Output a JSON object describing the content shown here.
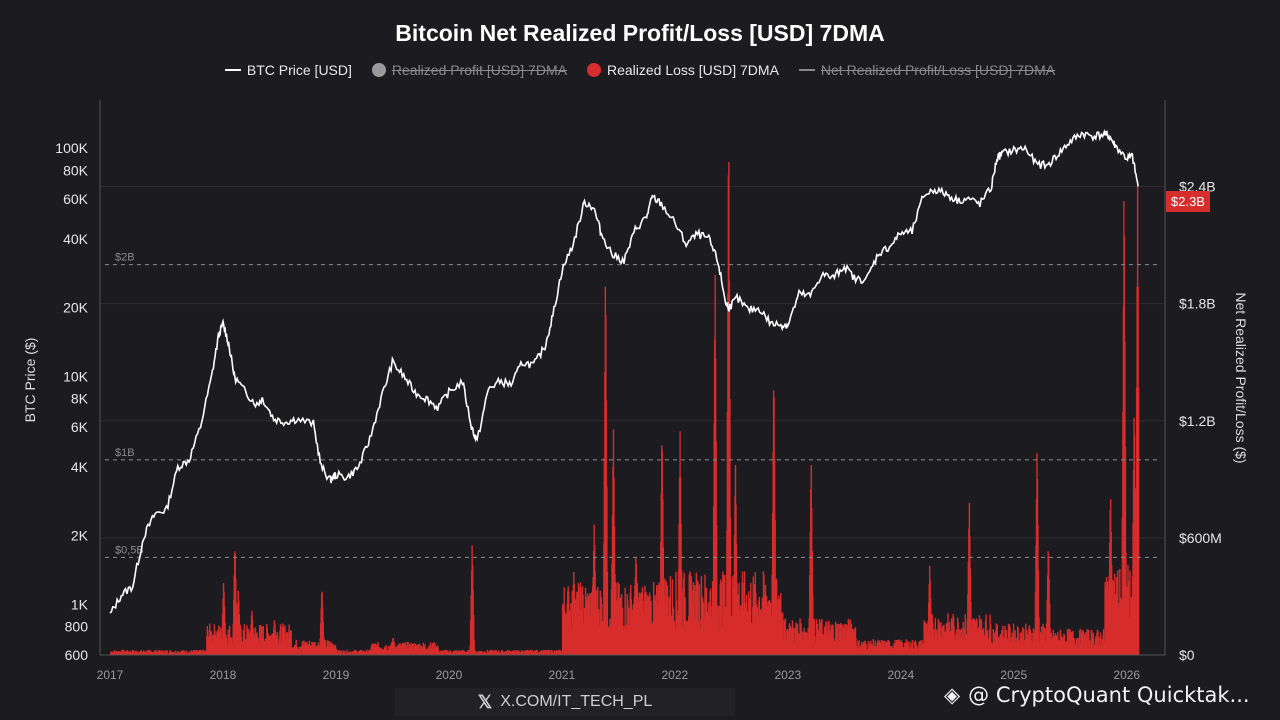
{
  "chart_data": {
    "type": "area",
    "title": "Bitcoin Net Realized Profit/Loss [USD] 7DMA",
    "legend": [
      {
        "name": "BTC Price [USD]",
        "marker": "line",
        "color": "#ffffff",
        "active": true
      },
      {
        "name": "Realized Profit [USD] 7DMA",
        "marker": "dot",
        "color": "#9a9a9a",
        "active": false
      },
      {
        "name": "Realized Loss [USD] 7DMA",
        "marker": "dot",
        "color": "#d62d2d",
        "active": true
      },
      {
        "name": "Net Realized Profit/Loss [USD] 7DMA",
        "marker": "line",
        "color": "#8a8a8a",
        "active": false
      }
    ],
    "legend_position": "top-center",
    "ylabel_left": "BTC Price ($)",
    "ylabel_right": "Net Realized Profit/Loss ($)",
    "x_range": [
      2017.0,
      2026.25
    ],
    "x_ticks": [
      "2017",
      "2018",
      "2019",
      "2020",
      "2021",
      "2022",
      "2023",
      "2024",
      "2025",
      "2026"
    ],
    "y_left_scale": "log",
    "y_left_range": [
      600,
      150000
    ],
    "y_left_ticks": [
      {
        "label": "600",
        "value": 600
      },
      {
        "label": "800",
        "value": 800
      },
      {
        "label": "1K",
        "value": 1000
      },
      {
        "label": "2K",
        "value": 2000
      },
      {
        "label": "4K",
        "value": 4000
      },
      {
        "label": "6K",
        "value": 6000
      },
      {
        "label": "8K",
        "value": 8000
      },
      {
        "label": "10K",
        "value": 10000
      },
      {
        "label": "20K",
        "value": 20000
      },
      {
        "label": "40K",
        "value": 40000
      },
      {
        "label": "60K",
        "value": 60000
      },
      {
        "label": "80K",
        "value": 80000
      },
      {
        "label": "100K",
        "value": 100000
      }
    ],
    "y_right_range": [
      0,
      2.7
    ],
    "y_right_ticks": [
      {
        "label": "$0",
        "value": 0
      },
      {
        "label": "$600M",
        "value": 0.6
      },
      {
        "label": "$1.2B",
        "value": 1.2
      },
      {
        "label": "$1.8B",
        "value": 1.8
      },
      {
        "label": "$2.4B",
        "value": 2.4
      }
    ],
    "reference_lines": [
      {
        "label": "$0,5B",
        "value": 0.5
      },
      {
        "label": "$1B",
        "value": 1.0
      },
      {
        "label": "$2B",
        "value": 2.0
      }
    ],
    "current_value_label": "$2.3B",
    "btc_price": {
      "name": "BTC Price [USD]",
      "x": [
        2017.0,
        2017.1,
        2017.2,
        2017.3,
        2017.4,
        2017.5,
        2017.6,
        2017.7,
        2017.8,
        2017.9,
        2017.96,
        2018.0,
        2018.05,
        2018.1,
        2018.2,
        2018.3,
        2018.35,
        2018.45,
        2018.55,
        2018.65,
        2018.8,
        2018.87,
        2018.95,
        2019.0,
        2019.1,
        2019.2,
        2019.3,
        2019.4,
        2019.5,
        2019.6,
        2019.7,
        2019.8,
        2019.9,
        2020.0,
        2020.12,
        2020.2,
        2020.25,
        2020.35,
        2020.45,
        2020.55,
        2020.65,
        2020.75,
        2020.85,
        2020.92,
        2021.0,
        2021.1,
        2021.2,
        2021.28,
        2021.35,
        2021.45,
        2021.55,
        2021.65,
        2021.75,
        2021.8,
        2021.88,
        2022.0,
        2022.1,
        2022.2,
        2022.3,
        2022.38,
        2022.45,
        2022.48,
        2022.55,
        2022.65,
        2022.75,
        2022.85,
        2022.95,
        2023.0,
        2023.1,
        2023.2,
        2023.3,
        2023.4,
        2023.5,
        2023.6,
        2023.7,
        2023.8,
        2023.9,
        2024.0,
        2024.1,
        2024.2,
        2024.3,
        2024.4,
        2024.5,
        2024.6,
        2024.7,
        2024.8,
        2024.85,
        2024.9,
        2025.0,
        2025.1,
        2025.2,
        2025.3,
        2025.4,
        2025.5,
        2025.6,
        2025.7,
        2025.8,
        2025.85,
        2025.9,
        2026.0,
        2026.05,
        2026.1
      ],
      "y": [
        900,
        1100,
        1200,
        2000,
        2500,
        2600,
        4000,
        4300,
        6000,
        10000,
        15000,
        17000,
        14000,
        10000,
        8500,
        7500,
        8000,
        6500,
        6300,
        6500,
        6200,
        4000,
        3500,
        3700,
        3600,
        4000,
        5300,
        8000,
        11500,
        10000,
        8500,
        8000,
        7300,
        8500,
        9500,
        6000,
        5200,
        8800,
        9500,
        9200,
        11500,
        11200,
        13500,
        18500,
        29000,
        38000,
        58000,
        55000,
        42000,
        34000,
        32000,
        44000,
        50000,
        61000,
        57000,
        47000,
        38000,
        42000,
        40000,
        32000,
        21000,
        20000,
        22000,
        19500,
        19800,
        17000,
        16800,
        16800,
        23000,
        22500,
        28000,
        27000,
        30500,
        26500,
        26800,
        34500,
        37000,
        42500,
        43000,
        62000,
        66000,
        63000,
        59000,
        60000,
        57000,
        67000,
        90000,
        95000,
        98000,
        100000,
        85000,
        84000,
        95000,
        107000,
        116000,
        113000,
        115000,
        112000,
        102000,
        90000,
        92000,
        68000
      ]
    },
    "realized_loss": {
      "name": "Realized Loss [USD] 7DMA",
      "unit": "billion USD",
      "spikes": [
        {
          "x": 2017.92,
          "y": 0.1
        },
        {
          "x": 2018.0,
          "y": 0.35
        },
        {
          "x": 2018.1,
          "y": 0.55
        },
        {
          "x": 2018.13,
          "y": 0.3
        },
        {
          "x": 2018.25,
          "y": 0.2
        },
        {
          "x": 2018.45,
          "y": 0.15
        },
        {
          "x": 2018.87,
          "y": 0.34
        },
        {
          "x": 2019.5,
          "y": 0.08
        },
        {
          "x": 2020.2,
          "y": 0.57
        },
        {
          "x": 2021.1,
          "y": 0.35
        },
        {
          "x": 2021.28,
          "y": 0.6
        },
        {
          "x": 2021.38,
          "y": 1.95
        },
        {
          "x": 2021.45,
          "y": 1.1
        },
        {
          "x": 2021.65,
          "y": 0.45
        },
        {
          "x": 2021.88,
          "y": 1.1
        },
        {
          "x": 2022.04,
          "y": 1.05
        },
        {
          "x": 2022.35,
          "y": 1.9
        },
        {
          "x": 2022.47,
          "y": 2.7
        },
        {
          "x": 2022.53,
          "y": 0.9
        },
        {
          "x": 2022.87,
          "y": 1.4
        },
        {
          "x": 2023.2,
          "y": 0.98
        },
        {
          "x": 2024.25,
          "y": 0.42
        },
        {
          "x": 2024.6,
          "y": 0.75
        },
        {
          "x": 2025.2,
          "y": 1.05
        },
        {
          "x": 2025.3,
          "y": 0.55
        },
        {
          "x": 2025.85,
          "y": 0.75
        },
        {
          "x": 2025.97,
          "y": 2.4
        },
        {
          "x": 2026.06,
          "y": 1.2
        },
        {
          "x": 2026.09,
          "y": 2.3
        }
      ]
    }
  },
  "watermarks": {
    "left_text": "X.COM/IT_TECH_PL",
    "right_text": "@ CryptoQuant Quicktak..."
  }
}
